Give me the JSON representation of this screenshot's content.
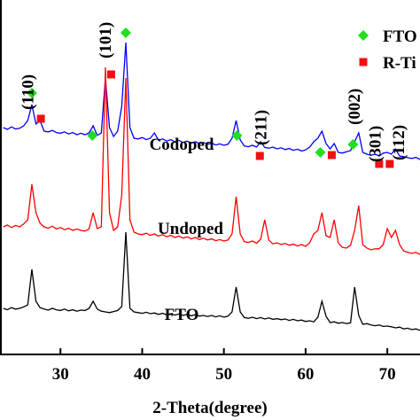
{
  "chart_data": {
    "type": "line",
    "xlabel": "2-Theta(degree)",
    "xlim": [
      22.6,
      74
    ],
    "ylim": [
      0,
      100
    ],
    "xticks": [
      30,
      40,
      50,
      60,
      70
    ],
    "x": [
      23,
      23.5,
      24,
      24.5,
      25,
      25.5,
      26,
      26.5,
      27,
      27.5,
      28,
      28.5,
      29,
      29.5,
      30,
      30.5,
      31,
      31.5,
      32,
      32.5,
      33,
      33.5,
      34,
      34.5,
      35,
      35.5,
      36,
      36.5,
      37,
      37.5,
      38,
      38.5,
      39,
      39.5,
      40,
      40.5,
      41,
      41.5,
      42,
      42.5,
      43,
      43.5,
      44,
      44.5,
      45,
      45.5,
      46,
      46.5,
      47,
      47.5,
      48,
      48.5,
      49,
      49.5,
      50,
      50.5,
      51,
      51.5,
      52,
      52.5,
      53,
      53.5,
      54,
      54.5,
      55,
      55.5,
      56,
      56.5,
      57,
      57.5,
      58,
      58.5,
      59,
      59.5,
      60,
      60.5,
      61,
      61.5,
      62,
      62.5,
      63,
      63.5,
      64,
      64.5,
      65,
      65.5,
      66,
      66.5,
      67,
      67.5,
      68,
      68.5,
      69,
      69.5,
      70,
      70.5,
      71,
      71.5,
      72,
      72.5,
      73,
      73.5,
      74
    ],
    "series": [
      {
        "name": "Codoped",
        "color": "#0000ff",
        "values": [
          64,
          63.5,
          64.2,
          63.6,
          63.8,
          64.5,
          66,
          70.5,
          65,
          66,
          63,
          62.8,
          63.2,
          62.6,
          62.4,
          62.8,
          62.2,
          62.6,
          62,
          62.4,
          62,
          62.5,
          64.5,
          61.8,
          62.5,
          78,
          64,
          61.5,
          63,
          70,
          88,
          64,
          61,
          60.8,
          61.2,
          60.6,
          61,
          62.5,
          60.4,
          60.8,
          60.2,
          60.6,
          60,
          60.4,
          59.8,
          60.2,
          59.6,
          60,
          59.5,
          59.8,
          59.3,
          59.6,
          59.1,
          59.4,
          59,
          59.3,
          61,
          66,
          60.5,
          58.8,
          58.6,
          59,
          58.5,
          60,
          58.4,
          58.2,
          58.5,
          58,
          58.3,
          57.8,
          58.1,
          57.6,
          57.9,
          57.4,
          57.7,
          58.5,
          60,
          61,
          63,
          59.5,
          58,
          59.5,
          57,
          56.8,
          57.2,
          57.5,
          60,
          62.5,
          57,
          56.5,
          56.2,
          56.5,
          56,
          56.8,
          57,
          56.5,
          58,
          56,
          55.8,
          55.5,
          55.3,
          55.6,
          55
        ]
      },
      {
        "name": "Undoped",
        "color": "#ff0000",
        "values": [
          36,
          36.5,
          35.8,
          36.4,
          36,
          36.8,
          38,
          48,
          40,
          37,
          36,
          35.6,
          36.2,
          35.4,
          35.8,
          35.2,
          35.6,
          35,
          35.4,
          35,
          34.8,
          35.4,
          40,
          35.5,
          36,
          81,
          40,
          35,
          36,
          45,
          78,
          38,
          34.5,
          34,
          33.8,
          34.2,
          33.6,
          34,
          33.4,
          33.8,
          33.2,
          33.6,
          33,
          33.4,
          32.8,
          33.2,
          32.6,
          33,
          32.4,
          32.8,
          32.3,
          32.6,
          32.1,
          32.4,
          32,
          32.3,
          34,
          44.5,
          34,
          31.8,
          31.6,
          32,
          31.4,
          32.5,
          38,
          32.2,
          31.2,
          31.5,
          31,
          31.3,
          30.8,
          31.1,
          30.6,
          31,
          30.5,
          31.5,
          34,
          35,
          40,
          33.5,
          33,
          38,
          31.5,
          30.2,
          30,
          30.8,
          35,
          42,
          31,
          30,
          29.5,
          29.8,
          29.8,
          31,
          35.5,
          33,
          35,
          31,
          29.2,
          28.8,
          28.5,
          28.8,
          28.2
        ]
      },
      {
        "name": "FTO",
        "color": "#000000",
        "values": [
          13,
          12.6,
          13.2,
          12.8,
          13,
          13.4,
          14,
          24,
          15,
          13.2,
          12.8,
          12.5,
          13,
          12.6,
          12.4,
          12.8,
          12.3,
          12.6,
          12.2,
          12.5,
          12.4,
          13,
          15,
          12.8,
          12.2,
          12,
          11.8,
          12.1,
          12.4,
          13.5,
          34.5,
          13,
          12,
          11.8,
          11.6,
          11.9,
          11.5,
          11.7,
          11.3,
          11.6,
          11.2,
          11.5,
          11.1,
          11.4,
          11,
          11.3,
          10.9,
          11.2,
          10.8,
          11,
          10.7,
          11,
          10.6,
          10.9,
          10.5,
          10.8,
          12,
          19,
          12,
          10.4,
          10.2,
          10.5,
          10.1,
          10.4,
          10,
          10.3,
          9.9,
          10.1,
          9.8,
          10,
          9.6,
          9.9,
          9.5,
          9.7,
          9.3,
          9.5,
          9.2,
          10.5,
          15,
          10.8,
          9,
          9.2,
          8.8,
          9,
          8.7,
          8.9,
          19,
          11,
          8.5,
          8.7,
          8.3,
          8.1,
          8.3,
          7.9,
          8,
          7.8,
          7.5,
          7.7,
          7.2,
          7.4,
          7,
          7.2,
          6.8
        ]
      }
    ],
    "markers": [
      {
        "name": "FTO",
        "color": "#22dd22",
        "shape": "diamond",
        "x": [
          26.5,
          33.9,
          38,
          51.6,
          61.8,
          65.8
        ],
        "y": [
          73.75,
          61.75,
          90.75,
          61.75,
          57,
          59.25
        ]
      },
      {
        "name": "R-Ti",
        "color": "#ee1111",
        "shape": "square",
        "x": [
          27.6,
          36.2,
          54.4,
          63.2,
          69,
          70.3
        ],
        "y": [
          66.5,
          79,
          56,
          56.25,
          53.75,
          53.75
        ]
      }
    ],
    "peak_labels": [
      "(110)",
      "(101)",
      "(211)",
      "(002)",
      "(301)",
      "(112)"
    ]
  }
}
